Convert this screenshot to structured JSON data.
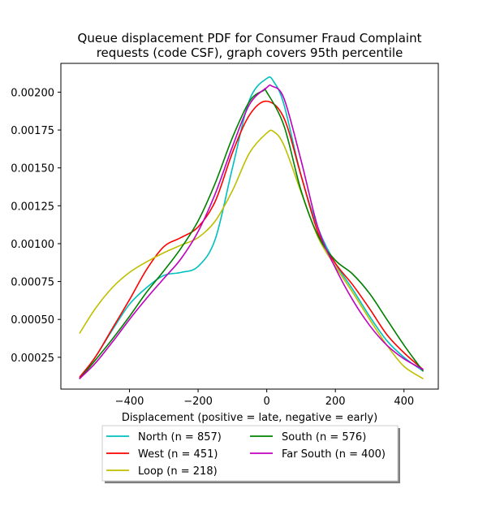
{
  "chart_data": {
    "type": "line",
    "title": "Queue displacement PDF for Consumer Fraud Complaint requests (code CSF), graph covers 95th percentile",
    "title_lines": [
      "Queue displacement PDF for Consumer Fraud Complaint",
      "requests (code CSF), graph covers 95th percentile"
    ],
    "xlabel": "Displacement (positive = late, negative = early)",
    "ylabel": "",
    "xlim": [
      -600,
      500
    ],
    "ylim": [
      4e-05,
      0.00219
    ],
    "xticks": [
      -400,
      -200,
      0,
      200,
      400
    ],
    "xtick_labels": [
      "−400",
      "−200",
      "0",
      "200",
      "400"
    ],
    "yticks": [
      0.00025,
      0.0005,
      0.00075,
      0.001,
      0.00125,
      0.0015,
      0.00175,
      0.002
    ],
    "ytick_labels": [
      "0.00025",
      "0.00050",
      "0.00075",
      "0.00100",
      "0.00125",
      "0.00150",
      "0.00175",
      "0.00200"
    ],
    "grid": false,
    "legend_placement": "below",
    "series": [
      {
        "name": "North (n = 857)",
        "color": "#00bfbf",
        "x": [
          -545,
          -500,
          -450,
          -400,
          -350,
          -300,
          -250,
          -200,
          -150,
          -100,
          -50,
          0,
          20,
          50,
          100,
          150,
          200,
          250,
          300,
          350,
          400,
          455
        ],
        "y": [
          0.00011,
          0.00025,
          0.00043,
          0.0006,
          0.00071,
          0.00079,
          0.00081,
          0.00085,
          0.00103,
          0.0015,
          0.00195,
          0.00209,
          0.00207,
          0.00192,
          0.00145,
          0.0011,
          0.00087,
          0.0007,
          0.00052,
          0.00036,
          0.00025,
          0.00016
        ]
      },
      {
        "name": "West (n = 451)",
        "color": "#ff0000",
        "x": [
          -545,
          -500,
          -450,
          -400,
          -350,
          -300,
          -250,
          -200,
          -150,
          -100,
          -50,
          0,
          50,
          100,
          150,
          200,
          250,
          300,
          350,
          400,
          455
        ],
        "y": [
          0.00012,
          0.00025,
          0.00044,
          0.00063,
          0.00083,
          0.00098,
          0.00104,
          0.00111,
          0.00128,
          0.0016,
          0.00185,
          0.00194,
          0.00183,
          0.00145,
          0.00107,
          0.00087,
          0.00073,
          0.00057,
          0.0004,
          0.00028,
          0.00017
        ]
      },
      {
        "name": "Loop (n = 218)",
        "color": "#bfbf00",
        "x": [
          -545,
          -500,
          -450,
          -400,
          -350,
          -300,
          -250,
          -200,
          -150,
          -100,
          -50,
          0,
          20,
          50,
          100,
          150,
          200,
          250,
          300,
          350,
          400,
          455
        ],
        "y": [
          0.00041,
          0.00057,
          0.00071,
          0.00081,
          0.00088,
          0.00094,
          0.00099,
          0.00104,
          0.00115,
          0.00135,
          0.0016,
          0.00173,
          0.00174,
          0.00165,
          0.00134,
          0.00104,
          0.00085,
          0.00068,
          0.0005,
          0.00033,
          0.00019,
          0.00011
        ]
      },
      {
        "name": "South (n = 576)",
        "color": "#008000",
        "x": [
          -545,
          -500,
          -450,
          -400,
          -350,
          -300,
          -250,
          -200,
          -150,
          -100,
          -50,
          -10,
          0,
          50,
          100,
          150,
          200,
          250,
          300,
          350,
          400,
          455
        ],
        "y": [
          0.00011,
          0.00023,
          0.00037,
          0.00052,
          0.00068,
          0.00082,
          0.00097,
          0.00115,
          0.0014,
          0.0017,
          0.00194,
          0.00201,
          0.002,
          0.00178,
          0.00135,
          0.00105,
          0.00089,
          0.0008,
          0.00067,
          0.0005,
          0.00033,
          0.00016
        ]
      },
      {
        "name": "Far South (n = 400)",
        "color": "#bf00bf",
        "x": [
          -545,
          -500,
          -450,
          -400,
          -350,
          -300,
          -250,
          -200,
          -150,
          -100,
          -50,
          0,
          15,
          50,
          100,
          150,
          200,
          250,
          300,
          350,
          400,
          455
        ],
        "y": [
          0.00011,
          0.00021,
          0.00035,
          0.0005,
          0.00064,
          0.00077,
          0.0009,
          0.00108,
          0.00133,
          0.00164,
          0.00192,
          0.00203,
          0.00204,
          0.00196,
          0.00155,
          0.0011,
          0.00084,
          0.00063,
          0.00046,
          0.00033,
          0.00024,
          0.00017
        ]
      }
    ]
  }
}
